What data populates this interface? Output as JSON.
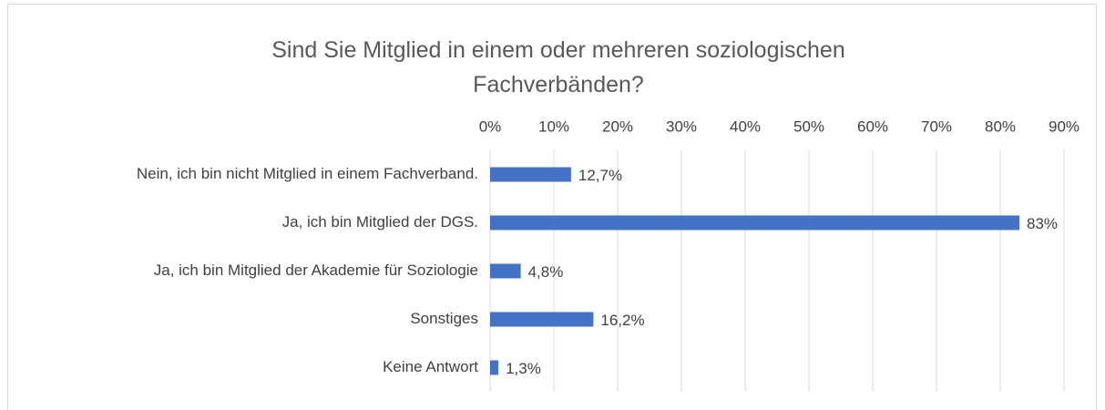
{
  "chart_data": {
    "type": "hbar",
    "title": "Sind Sie Mitglied in einem oder mehreren soziologischen Fachverbänden?",
    "categories": [
      "Nein, ich bin nicht Mitglied in einem Fachverband.",
      "Ja, ich bin Mitglied der DGS.",
      "Ja, ich bin Mitglied der Akademie für Soziologie",
      "Sonstiges",
      "Keine Antwort"
    ],
    "values": [
      12.7,
      83,
      4.8,
      16.2,
      1.3
    ],
    "value_labels": [
      "12,7%",
      "83%",
      "4,8%",
      "16,2%",
      "1,3%"
    ],
    "color": "#4472c4",
    "xlim": [
      0,
      90
    ],
    "xticks": [
      {
        "value": 0,
        "label": "0%"
      },
      {
        "value": 10,
        "label": "10%"
      },
      {
        "value": 20,
        "label": "20%"
      },
      {
        "value": 30,
        "label": "30%"
      },
      {
        "value": 40,
        "label": "40%"
      },
      {
        "value": 50,
        "label": "50%"
      },
      {
        "value": 60,
        "label": "60%"
      },
      {
        "value": 70,
        "label": "70%"
      },
      {
        "value": 80,
        "label": "80%"
      },
      {
        "value": 90,
        "label": "90%"
      }
    ],
    "grid": true
  }
}
